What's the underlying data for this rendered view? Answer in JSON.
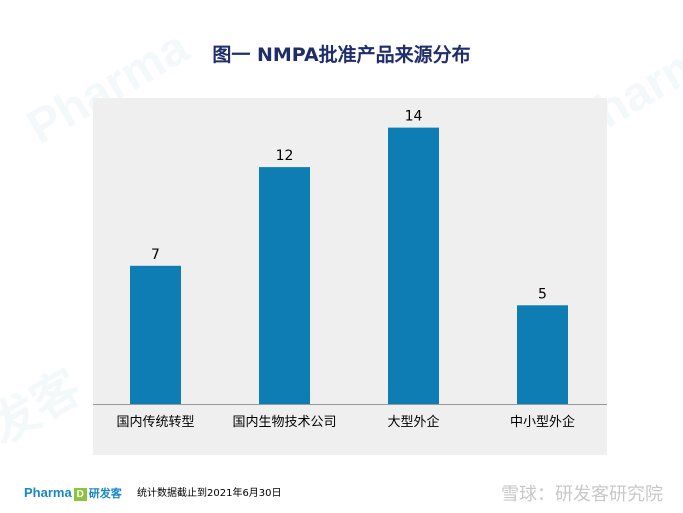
{
  "title": "图一 NMPA批准产品来源分布",
  "footer": {
    "logo_text": "Pharma",
    "logo_mark": "D",
    "logo_cn": "研发客",
    "note": "统计数据截止到2021年6月30日",
    "watermark_source": "雪球：研发客研究院"
  },
  "colors": {
    "bar": "#0e7db3",
    "title": "#1f2d6b",
    "panel": "#efefef"
  },
  "chart_data": {
    "type": "bar",
    "title": "图一 NMPA批准产品来源分布",
    "categories": [
      "国内传统转型",
      "国内生物技术公司",
      "大型外企",
      "中小型外企"
    ],
    "values": [
      7,
      12,
      14,
      5
    ],
    "data_labels": [
      "7",
      "12",
      "14",
      "5"
    ],
    "xlabel": "",
    "ylabel": "",
    "ylim": [
      0,
      15.5
    ],
    "grid": false,
    "legend": "none"
  }
}
